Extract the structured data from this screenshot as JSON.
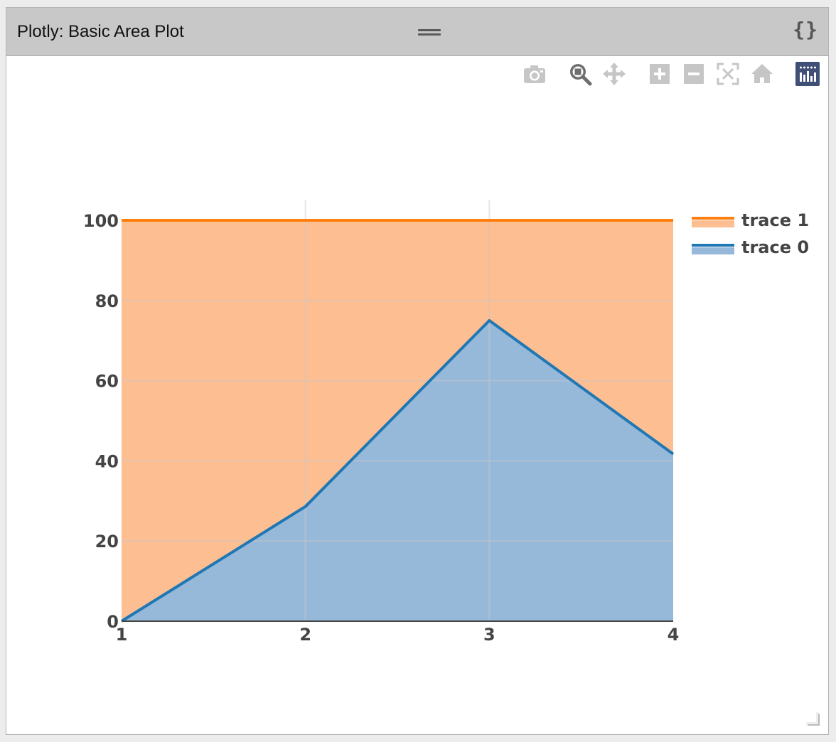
{
  "panel": {
    "title": "Plotly: Basic Area Plot",
    "code_toggle_label": "{}"
  },
  "modebar": {
    "buttons": [
      {
        "name": "download-png-button",
        "icon": "camera-icon"
      },
      {
        "name": "zoom-button",
        "icon": "zoom-icon",
        "active": true
      },
      {
        "name": "pan-button",
        "icon": "pan-icon"
      },
      {
        "name": "zoom-in-button",
        "icon": "plus-square-icon"
      },
      {
        "name": "zoom-out-button",
        "icon": "minus-square-icon"
      },
      {
        "name": "autoscale-button",
        "icon": "autoscale-icon"
      },
      {
        "name": "reset-axes-button",
        "icon": "home-icon"
      },
      {
        "name": "plotly-logo-button",
        "icon": "plotly-logo-icon"
      }
    ]
  },
  "chart_data": {
    "type": "area",
    "title": "",
    "xlabel": "",
    "ylabel": "",
    "x": [
      1,
      2,
      3,
      4
    ],
    "xlim": [
      1,
      4
    ],
    "ylim": [
      0,
      105
    ],
    "x_ticks": [
      "1",
      "2",
      "3",
      "4"
    ],
    "y_ticks": [
      "0",
      "20",
      "40",
      "60",
      "80",
      "100"
    ],
    "grid": true,
    "legend_position": "top-right",
    "stacked_normalized_percent": true,
    "series": [
      {
        "name": "trace 0",
        "values": [
          0,
          28.6,
          75,
          41.7
        ],
        "color": "#1f77b4",
        "fill": "#97b9d9"
      },
      {
        "name": "trace 1",
        "values": [
          100,
          100,
          100,
          100
        ],
        "color": "#ff7f0e",
        "fill": "#fdbe92"
      }
    ],
    "legend": [
      "trace 1",
      "trace 0"
    ]
  }
}
